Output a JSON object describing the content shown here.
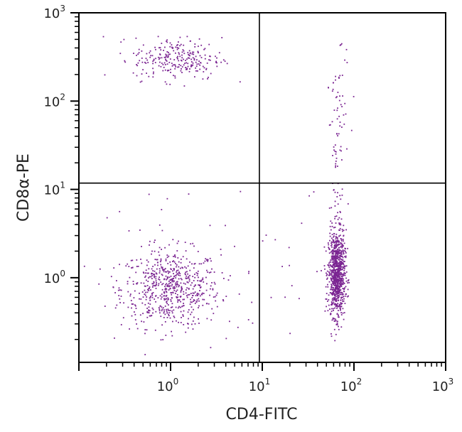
{
  "chart_data": {
    "type": "scatter",
    "title": "",
    "xlabel": "CD4-FITC",
    "ylabel": "CD8α-PE",
    "xscale": "log",
    "yscale": "log",
    "xlim": [
      0.1,
      1000
    ],
    "ylim": [
      0.11,
      1000
    ],
    "x_ticks": [
      {
        "base": "10",
        "exp": "0",
        "value": 1
      },
      {
        "base": "10",
        "exp": "1",
        "value": 10
      },
      {
        "base": "10",
        "exp": "2",
        "value": 100
      },
      {
        "base": "10",
        "exp": "3",
        "value": 1000
      }
    ],
    "y_ticks": [
      {
        "base": "10",
        "exp": "0",
        "value": 1
      },
      {
        "base": "10",
        "exp": "1",
        "value": 10
      },
      {
        "base": "10",
        "exp": "2",
        "value": 100
      },
      {
        "base": "10",
        "exp": "3",
        "value": 1000
      }
    ],
    "grid": false,
    "quadrant_gates": {
      "x": 9.3,
      "y": 11.8
    },
    "point_color": "#7b2592",
    "populations": [
      {
        "id": "CD4-CD8-",
        "count": 650,
        "x_center": 1.0,
        "x_log_sd": 0.27,
        "y_center": 0.75,
        "y_log_sd": 0.22
      },
      {
        "id": "CD4+CD8-",
        "count": 900,
        "x_center": 65,
        "x_log_sd": 0.045,
        "y_center": 1.1,
        "y_log_sd": 0.24
      },
      {
        "id": "CD4-CD8+",
        "count": 260,
        "x_center": 1.2,
        "x_log_sd": 0.24,
        "y_center": 300,
        "y_log_sd": 0.12
      },
      {
        "id": "CD4+CD8+ stream",
        "count": 90,
        "x_center": 68,
        "x_log_sd": 0.06,
        "y_min": 3,
        "y_max": 480
      },
      {
        "id": "background",
        "count": 50,
        "x_min": 0.2,
        "x_max": 100,
        "y_min": 0.15,
        "y_max": 10
      }
    ]
  }
}
